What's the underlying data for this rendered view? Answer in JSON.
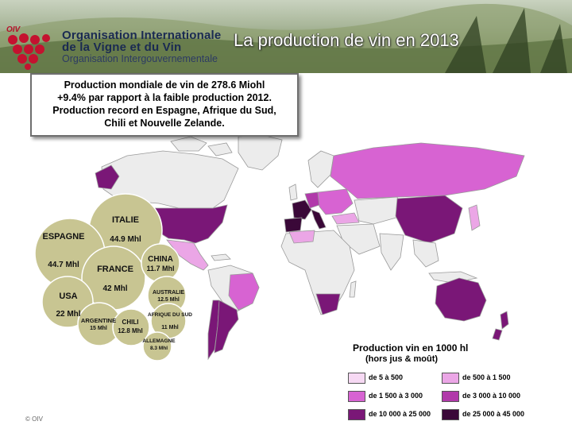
{
  "header": {
    "brand": "OIV",
    "org_line1": "Organisation Internationale",
    "org_line2": "de la Vigne et du Vin",
    "org_line3": "Organisation Intergouvernementale",
    "title": "La production de vin en 2013"
  },
  "summary": {
    "lines": [
      "Production mondiale de vin de 278.6 Miohl",
      "+9.4% par rapport à la faible production 2012.",
      "Production record en Espagne, Afrique du Sud,",
      "Chili et Nouvelle Zelande."
    ]
  },
  "bubbles": [
    {
      "country": "ITALIE",
      "value": "44.9 Mhl",
      "fill": "#c8c592"
    },
    {
      "country": "ESPAGNE",
      "value": "44.7 Mhl",
      "fill": "#c8c592"
    },
    {
      "country": "FRANCE",
      "value": "42 Mhl",
      "fill": "#c8c592"
    },
    {
      "country": "USA",
      "value": "22 Mhl",
      "fill": "#c8c592"
    },
    {
      "country": "CHINA",
      "value": "11.7 Mhl",
      "fill": "#c8c592"
    },
    {
      "country": "AUSTRALIE",
      "value": "12.5 Mhl",
      "fill": "#c8c592"
    },
    {
      "country": "ARGENTINE",
      "value": "15 Mhl",
      "fill": "#c8c592"
    },
    {
      "country": "CHILI",
      "value": "12.8 Mhl",
      "fill": "#c8c592"
    },
    {
      "country": "AFRIQUE DU SUD",
      "value": "11 Mhl",
      "fill": "#c8c592"
    },
    {
      "country": "ALLEMAGNE",
      "value": "8.3 Mhl",
      "fill": "#c8c592"
    }
  ],
  "legend": {
    "title": "Production vin en 1000 hl",
    "subtitle": "(hors jus & moût)",
    "items": [
      {
        "label": "de 5 à 500",
        "color": "#f6d9f3"
      },
      {
        "label": "de 500 à 1 500",
        "color": "#eba6e6"
      },
      {
        "label": "de 1 500 à 3 000",
        "color": "#d763d2"
      },
      {
        "label": "de 3 000 à 10 000",
        "color": "#b13aaa"
      },
      {
        "label": "de 10 000 à 25 000",
        "color": "#7a1777"
      },
      {
        "label": "de 25 000 à 45 000",
        "color": "#3a0838"
      }
    ]
  },
  "colors": {
    "land_nodata": "#ececec",
    "border": "#9a9a9a",
    "bubble_stroke": "#ffffff"
  },
  "footer": {
    "copyright": "© OIV"
  }
}
